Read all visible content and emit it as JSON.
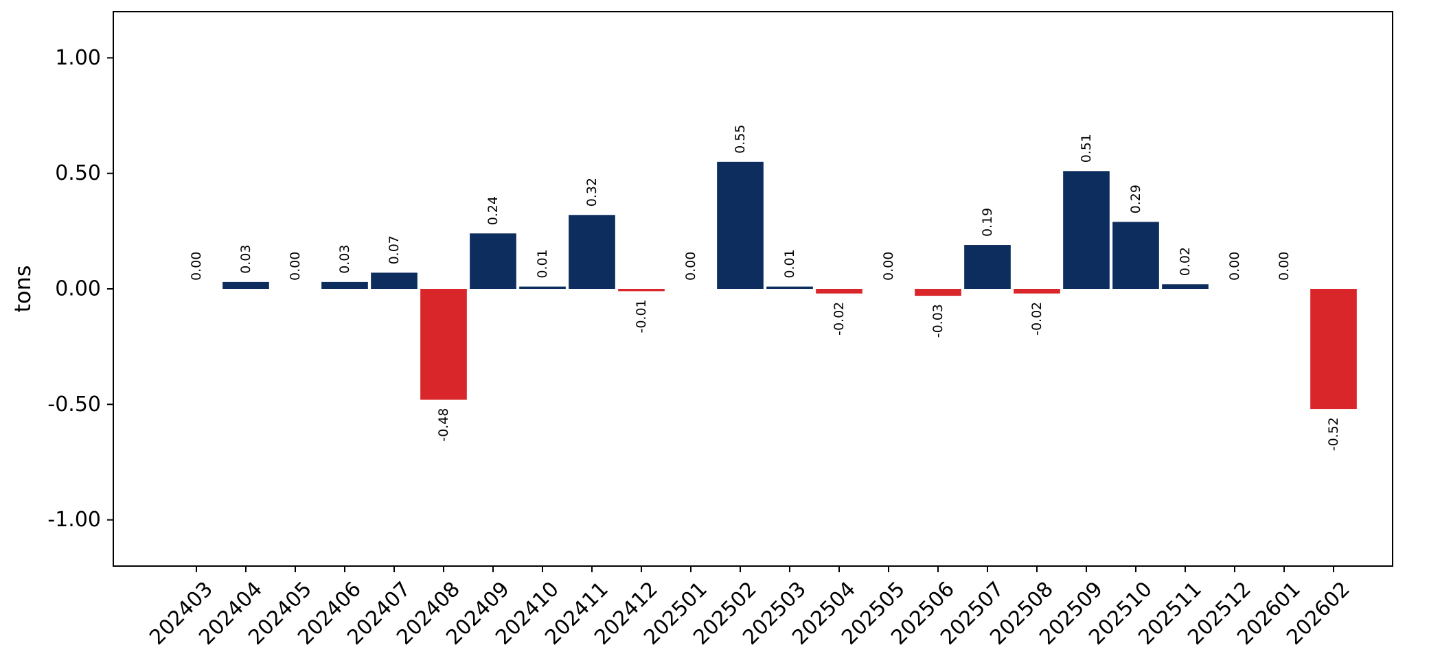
{
  "chart_data": {
    "type": "bar",
    "title": "",
    "xlabel": "",
    "ylabel": "tons",
    "ylim": [
      -1.2,
      1.2
    ],
    "yticks": [
      -1.0,
      -0.5,
      0.0,
      0.5,
      1.0
    ],
    "ytick_labels": [
      "-1.00",
      "-0.50",
      "0.00",
      "0.50",
      "1.00"
    ],
    "grid": false,
    "categories": [
      "202403",
      "202404",
      "202405",
      "202406",
      "202407",
      "202408",
      "202409",
      "202410",
      "202411",
      "202412",
      "202501",
      "202502",
      "202503",
      "202504",
      "202505",
      "202506",
      "202507",
      "202508",
      "202509",
      "202510",
      "202511",
      "202512",
      "202601",
      "202602"
    ],
    "values": [
      0.0,
      0.03,
      0.0,
      0.03,
      0.07,
      -0.48,
      0.24,
      0.01,
      0.32,
      -0.01,
      0.0,
      0.55,
      0.01,
      -0.02,
      0.0,
      -0.03,
      0.19,
      -0.02,
      0.51,
      0.29,
      0.02,
      0.0,
      0.0,
      -0.52
    ],
    "data_labels": [
      "0.00",
      "0.03",
      "0.00",
      "0.03",
      "0.07",
      "-0.48",
      "0.24",
      "0.01",
      "0.32",
      "-0.01",
      "0.00",
      "0.55",
      "0.01",
      "-0.02",
      "0.00",
      "-0.03",
      "0.19",
      "-0.02",
      "0.51",
      "0.29",
      "0.02",
      "0.00",
      "0.00",
      "-0.52"
    ],
    "colors": {
      "positive": "#0d2d5e",
      "negative": "#d9262a",
      "axis": "#000000"
    }
  }
}
